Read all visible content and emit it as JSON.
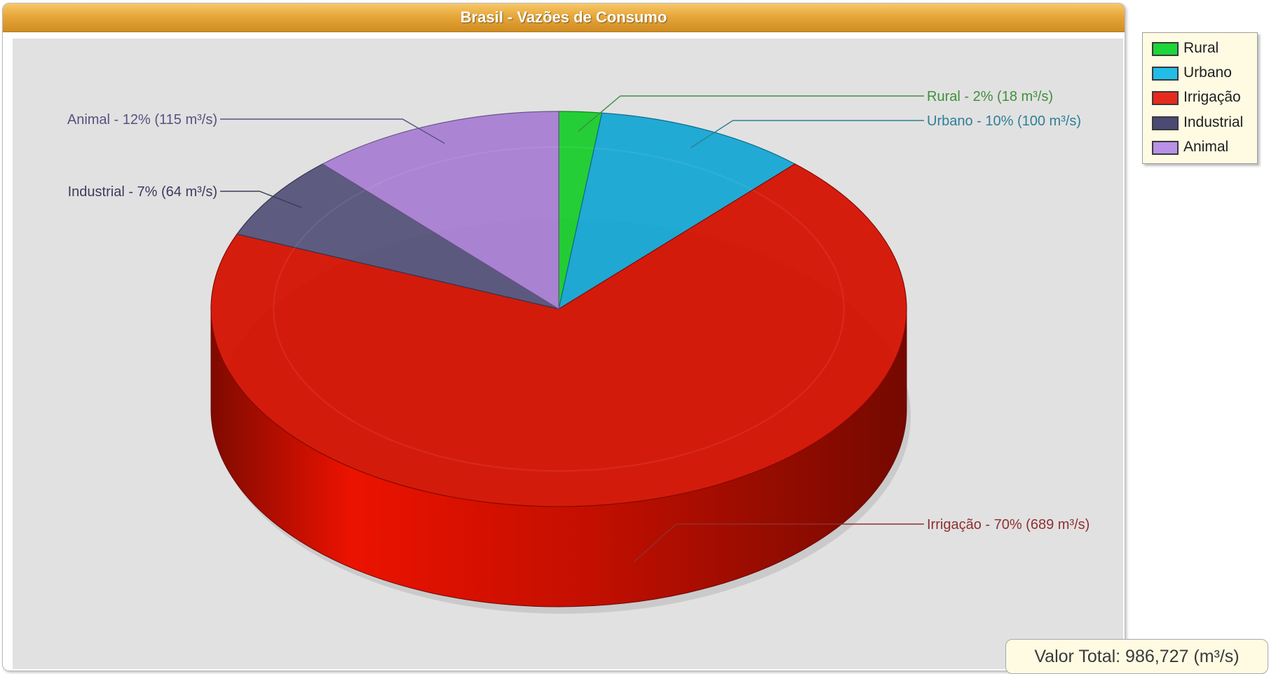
{
  "chart_data": {
    "type": "pie",
    "title": "Brasil - Vazões de Consumo",
    "unit": "m³/s",
    "slices": [
      {
        "name": "Rural",
        "percent": 2,
        "value": 18,
        "label": "Rural - 2% (18 m³/s)",
        "color": "#18cc2c",
        "label_color": "#3f8f3f"
      },
      {
        "name": "Urbano",
        "percent": 10,
        "value": 100,
        "label": "Urbano - 10% (100 m³/s)",
        "color": "#14a6d2",
        "label_color": "#2f7f96"
      },
      {
        "name": "Irrigação",
        "percent": 70,
        "value": 689,
        "label": "Irrigação - 70% (689 m³/s)",
        "color": "#d31000",
        "label_color": "#8f3030"
      },
      {
        "name": "Industrial",
        "percent": 7,
        "value": 64,
        "label": "Industrial - 7% (64 m³/s)",
        "color": "#555279",
        "label_color": "#3c3c5c"
      },
      {
        "name": "Animal",
        "percent": 12,
        "value": 115,
        "label": "Animal - 12% (115 m³/s)",
        "color": "#a77ed2",
        "label_color": "#5a5080"
      }
    ],
    "legend": {
      "position": "top-right",
      "items": [
        {
          "label": "Rural",
          "color": "#1cd63a"
        },
        {
          "label": "Urbano",
          "color": "#22bde6"
        },
        {
          "label": "Irrigação",
          "color": "#e82a1e"
        },
        {
          "label": "Industrial",
          "color": "#4b4a73"
        },
        {
          "label": "Animal",
          "color": "#b991e6"
        }
      ]
    },
    "total_text": "Valor Total: 986,727 (m³/s)"
  }
}
